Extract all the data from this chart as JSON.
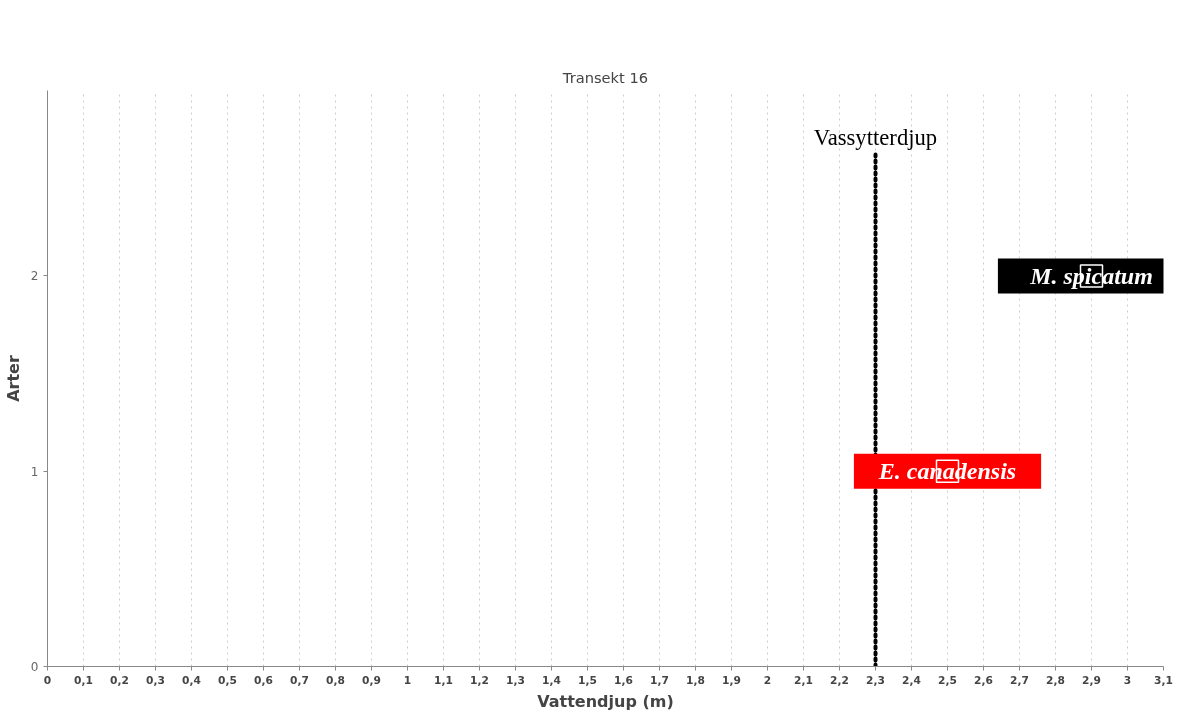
{
  "chart_data": {
    "type": "scatter",
    "title": "Transekt 16",
    "xlabel": "Vattendjup (m)",
    "ylabel": "Arter",
    "xlim": [
      0,
      3.1
    ],
    "ylim": [
      0,
      2.95
    ],
    "xticks": [
      0,
      {
        "value": 0.1,
        "label": "0,1"
      },
      {
        "value": 0.2,
        "label": "0,2"
      },
      {
        "value": 0.3,
        "label": "0,3"
      },
      {
        "value": 0.4,
        "label": "0,4"
      },
      {
        "value": 0.5,
        "label": "0,5"
      },
      {
        "value": 0.6,
        "label": "0,6"
      },
      {
        "value": 0.7,
        "label": "0,7"
      },
      {
        "value": 0.8,
        "label": "0,8"
      },
      {
        "value": 0.9,
        "label": "0,9"
      },
      1,
      {
        "value": 1.1,
        "label": "1,1"
      },
      {
        "value": 1.2,
        "label": "1,2"
      },
      {
        "value": 1.3,
        "label": "1,3"
      },
      {
        "value": 1.4,
        "label": "1,4"
      },
      {
        "value": 1.5,
        "label": "1,5"
      },
      {
        "value": 1.6,
        "label": "1,6"
      },
      {
        "value": 1.7,
        "label": "1,7"
      },
      {
        "value": 1.8,
        "label": "1,8"
      },
      {
        "value": 1.9,
        "label": "1,9"
      },
      2,
      {
        "value": 2.1,
        "label": "2,1"
      },
      {
        "value": 2.2,
        "label": "2,2"
      },
      {
        "value": 2.3,
        "label": "2,3"
      },
      {
        "value": 2.4,
        "label": "2,4"
      },
      {
        "value": 2.5,
        "label": "2,5"
      },
      {
        "value": 2.6,
        "label": "2,6"
      },
      {
        "value": 2.7,
        "label": "2,7"
      },
      {
        "value": 2.8,
        "label": "2,8"
      },
      {
        "value": 2.9,
        "label": "2,9"
      },
      3,
      {
        "value": 3.1,
        "label": "3,1"
      }
    ],
    "yticks": [
      0,
      1,
      2
    ],
    "grid": "x",
    "marker": "square",
    "series": [
      {
        "name": "E. canadensis",
        "color": "#ff0000",
        "x": [
          2.5
        ],
        "values": [
          1
        ]
      },
      {
        "name": "M. spicatum",
        "color": "#000000",
        "x": [
          2.9
        ],
        "values": [
          2
        ]
      }
    ],
    "ref_lines": [
      {
        "axis": "x",
        "value": 2.3,
        "label": "Vassytterdjup",
        "color": "#000000",
        "line_style": "dotted"
      }
    ]
  }
}
